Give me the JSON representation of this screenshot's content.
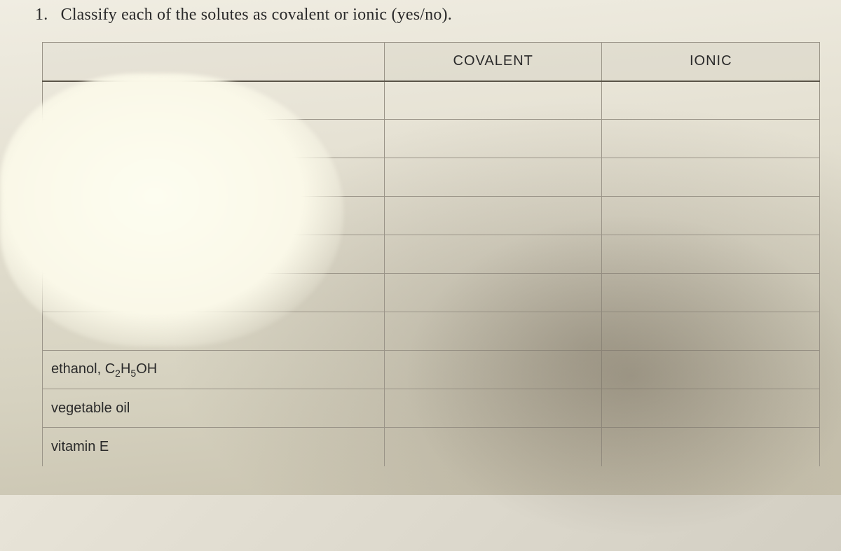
{
  "question": {
    "number": "1.",
    "text": "Classify each of the solutes as covalent or ionic (yes/no)."
  },
  "headers": {
    "blank": "",
    "covalent": "COVALENT",
    "ionic": "IONIC"
  },
  "rows": [
    {
      "solute": "",
      "cov": "",
      "ion": ""
    },
    {
      "solute": "",
      "cov": "",
      "ion": ""
    },
    {
      "solute": "",
      "cov": "",
      "ion": ""
    },
    {
      "solute": "",
      "cov": "",
      "ion": ""
    },
    {
      "solute": "",
      "cov": "",
      "ion": ""
    },
    {
      "solute": "",
      "cov": "",
      "ion": ""
    },
    {
      "solute": "",
      "cov": "",
      "ion": ""
    },
    {
      "solute_html": "ethanol, C<sub>2</sub>H<sub>5</sub>OH",
      "cov": "",
      "ion": ""
    },
    {
      "solute": "vegetable oil",
      "cov": "",
      "ion": ""
    },
    {
      "solute": "vitamin E",
      "cov": "",
      "ion": ""
    }
  ]
}
